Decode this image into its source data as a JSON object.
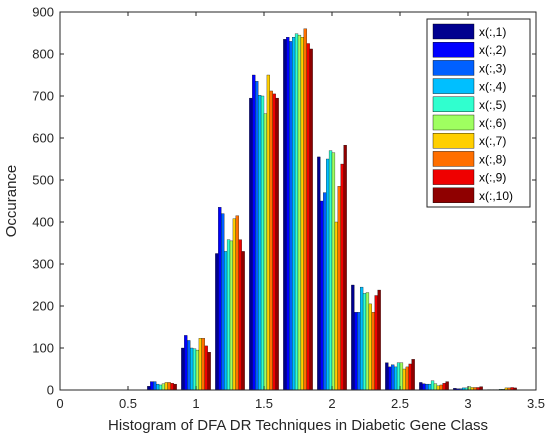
{
  "chart_data": {
    "type": "bar",
    "title": "",
    "xlabel": "Histogram of DFA DR Techniques in Diabetic Gene Class",
    "ylabel": "Occurance",
    "xlim": [
      0,
      3.5
    ],
    "ylim": [
      0,
      900
    ],
    "x_ticks": [
      "0",
      "0.5",
      "1",
      "1.5",
      "2",
      "2.5",
      "3",
      "3.5"
    ],
    "y_ticks": [
      "0",
      "100",
      "200",
      "300",
      "400",
      "500",
      "600",
      "700",
      "800",
      "900"
    ],
    "grid": false,
    "legend_position": "top-right",
    "bin_centers": [
      0.5,
      0.75,
      1.0,
      1.25,
      1.5,
      1.75,
      2.0,
      2.25,
      2.5,
      2.75,
      3.0,
      3.25
    ],
    "series": [
      {
        "name": "x(:,1)",
        "color": "#00008f",
        "values": [
          0,
          9,
          100,
          325,
          695,
          835,
          555,
          250,
          65,
          18,
          4,
          1
        ]
      },
      {
        "name": "x(:,2)",
        "color": "#0000ff",
        "values": [
          0,
          20,
          130,
          435,
          750,
          840,
          450,
          185,
          55,
          15,
          3,
          1
        ]
      },
      {
        "name": "x(:,3)",
        "color": "#0060ff",
        "values": [
          0,
          20,
          118,
          420,
          735,
          830,
          470,
          185,
          60,
          14,
          3,
          1
        ]
      },
      {
        "name": "x(:,4)",
        "color": "#00bfff",
        "values": [
          0,
          14,
          100,
          330,
          702,
          840,
          550,
          245,
          55,
          14,
          5,
          1
        ]
      },
      {
        "name": "x(:,5)",
        "color": "#30ffcf",
        "values": [
          0,
          12,
          98,
          358,
          700,
          848,
          570,
          230,
          65,
          22,
          5,
          2
        ]
      },
      {
        "name": "x(:,6)",
        "color": "#9fff60",
        "values": [
          0,
          15,
          95,
          355,
          658,
          845,
          565,
          232,
          65,
          15,
          8,
          2
        ]
      },
      {
        "name": "x(:,7)",
        "color": "#ffcf00",
        "values": [
          0,
          18,
          123,
          408,
          750,
          840,
          400,
          205,
          50,
          10,
          6,
          5
        ]
      },
      {
        "name": "x(:,8)",
        "color": "#ff6f00",
        "values": [
          0,
          18,
          123,
          415,
          712,
          860,
          485,
          185,
          55,
          12,
          6,
          5
        ]
      },
      {
        "name": "x(:,9)",
        "color": "#ef0000",
        "values": [
          0,
          16,
          105,
          358,
          705,
          825,
          538,
          225,
          62,
          16,
          6,
          6
        ]
      },
      {
        "name": "x(:,10)",
        "color": "#8f0000",
        "values": [
          0,
          14,
          90,
          330,
          695,
          812,
          583,
          238,
          73,
          20,
          8,
          5
        ]
      }
    ]
  }
}
